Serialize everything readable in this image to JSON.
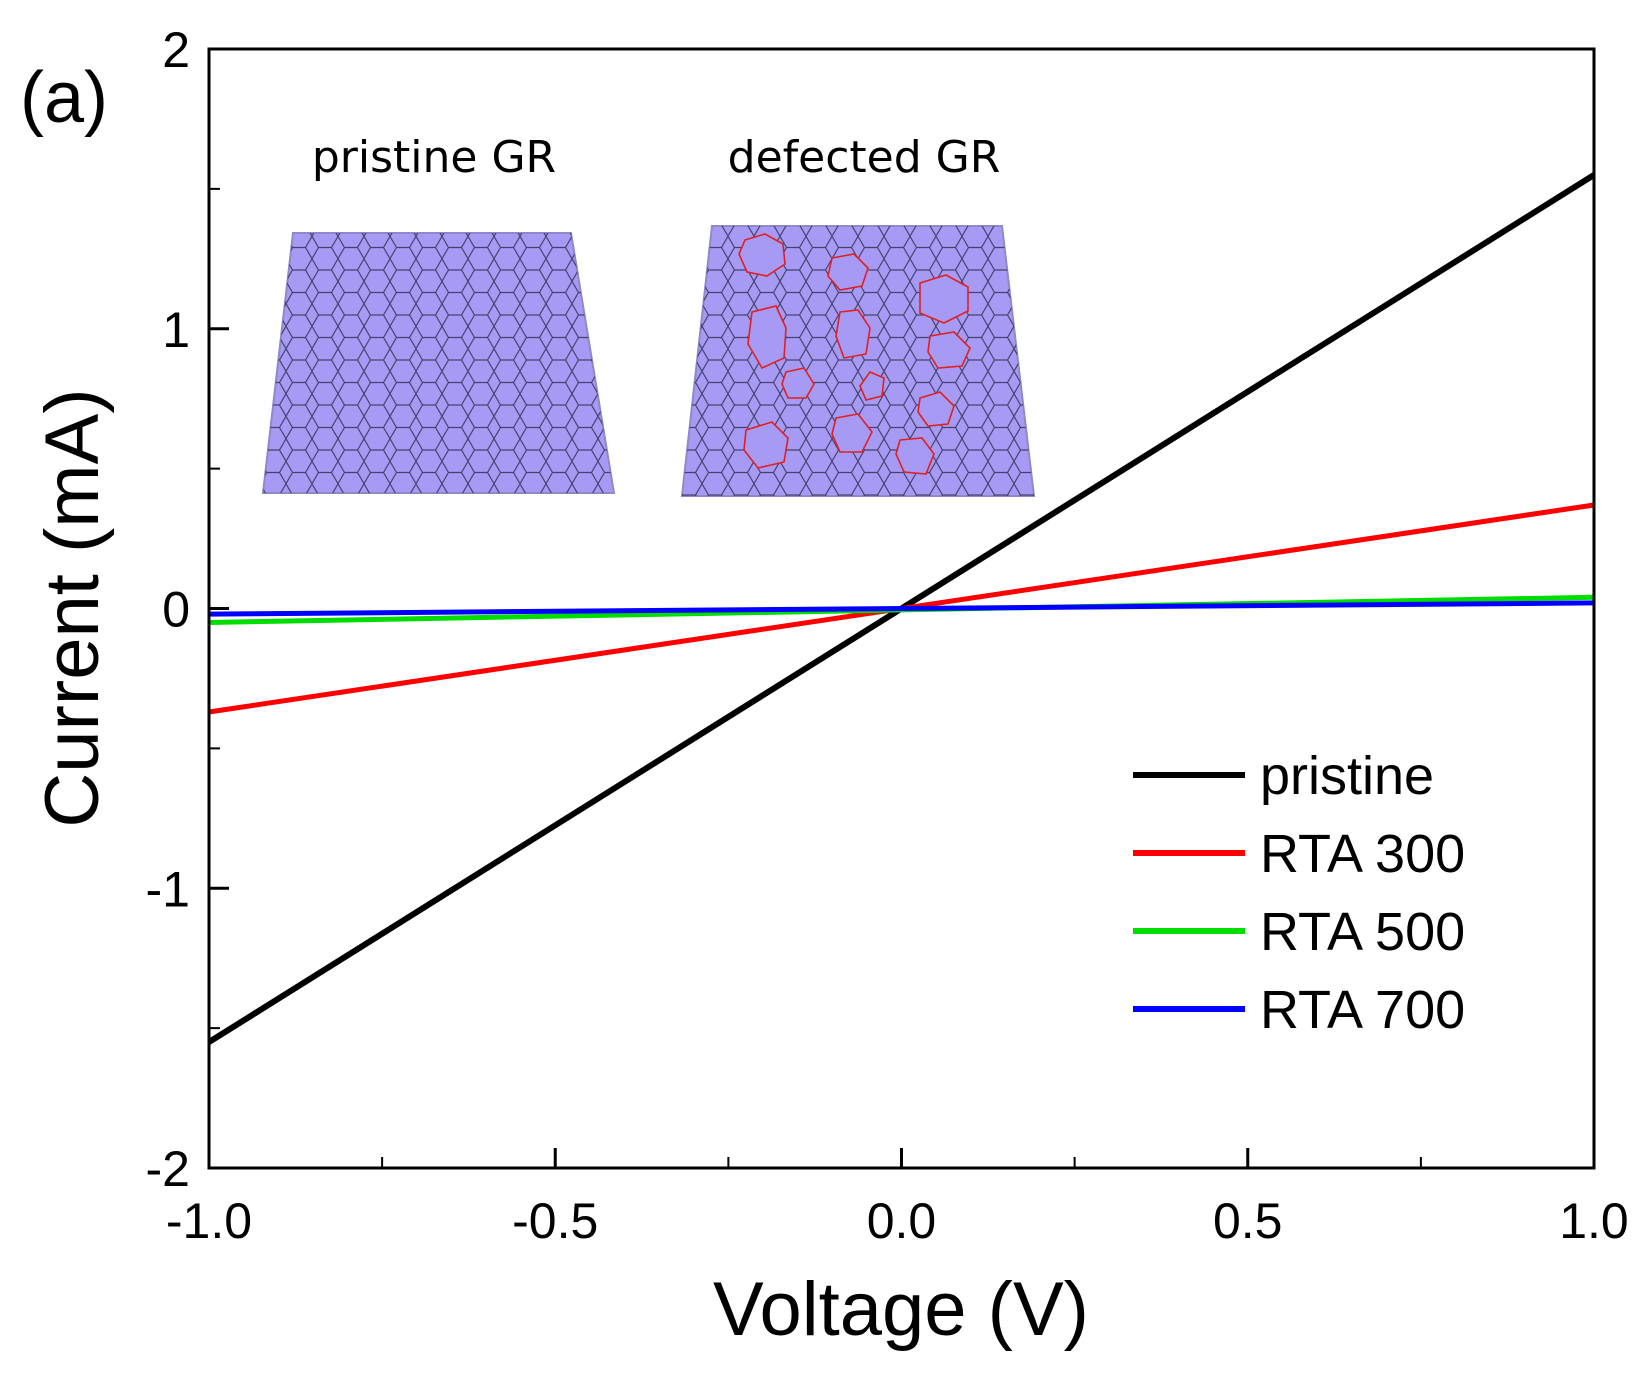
{
  "panel_label": "(a)",
  "insets": [
    {
      "label": "pristine GR"
    },
    {
      "label": "defected GR"
    }
  ],
  "chart_data": {
    "type": "line",
    "title": "",
    "xlabel": "Voltage (V)",
    "ylabel": "Current (mA)",
    "xlim": [
      -1.0,
      1.0
    ],
    "ylim": [
      -2,
      2
    ],
    "xticks": [
      -1.0,
      -0.5,
      0.0,
      0.5,
      1.0
    ],
    "xtick_labels": [
      "-1.0",
      "-0.5",
      "0.0",
      "0.5",
      "1.0"
    ],
    "yticks": [
      -2,
      -1,
      0,
      1,
      2
    ],
    "ytick_labels": [
      "-2",
      "-1",
      "0",
      "1",
      "2"
    ],
    "grid": false,
    "legend_position": "bottom-right",
    "series": [
      {
        "name": "pristine",
        "color": "#000000",
        "x": [
          -1.0,
          1.0
        ],
        "y": [
          -1.55,
          1.55
        ]
      },
      {
        "name": "RTA 300",
        "color": "#ff0000",
        "x": [
          -1.0,
          1.0
        ],
        "y": [
          -0.37,
          0.37
        ]
      },
      {
        "name": "RTA 500",
        "color": "#00dd00",
        "x": [
          -1.0,
          1.0
        ],
        "y": [
          -0.05,
          0.04
        ]
      },
      {
        "name": "RTA 700",
        "color": "#0000ff",
        "x": [
          -1.0,
          1.0
        ],
        "y": [
          -0.02,
          0.02
        ]
      }
    ]
  }
}
